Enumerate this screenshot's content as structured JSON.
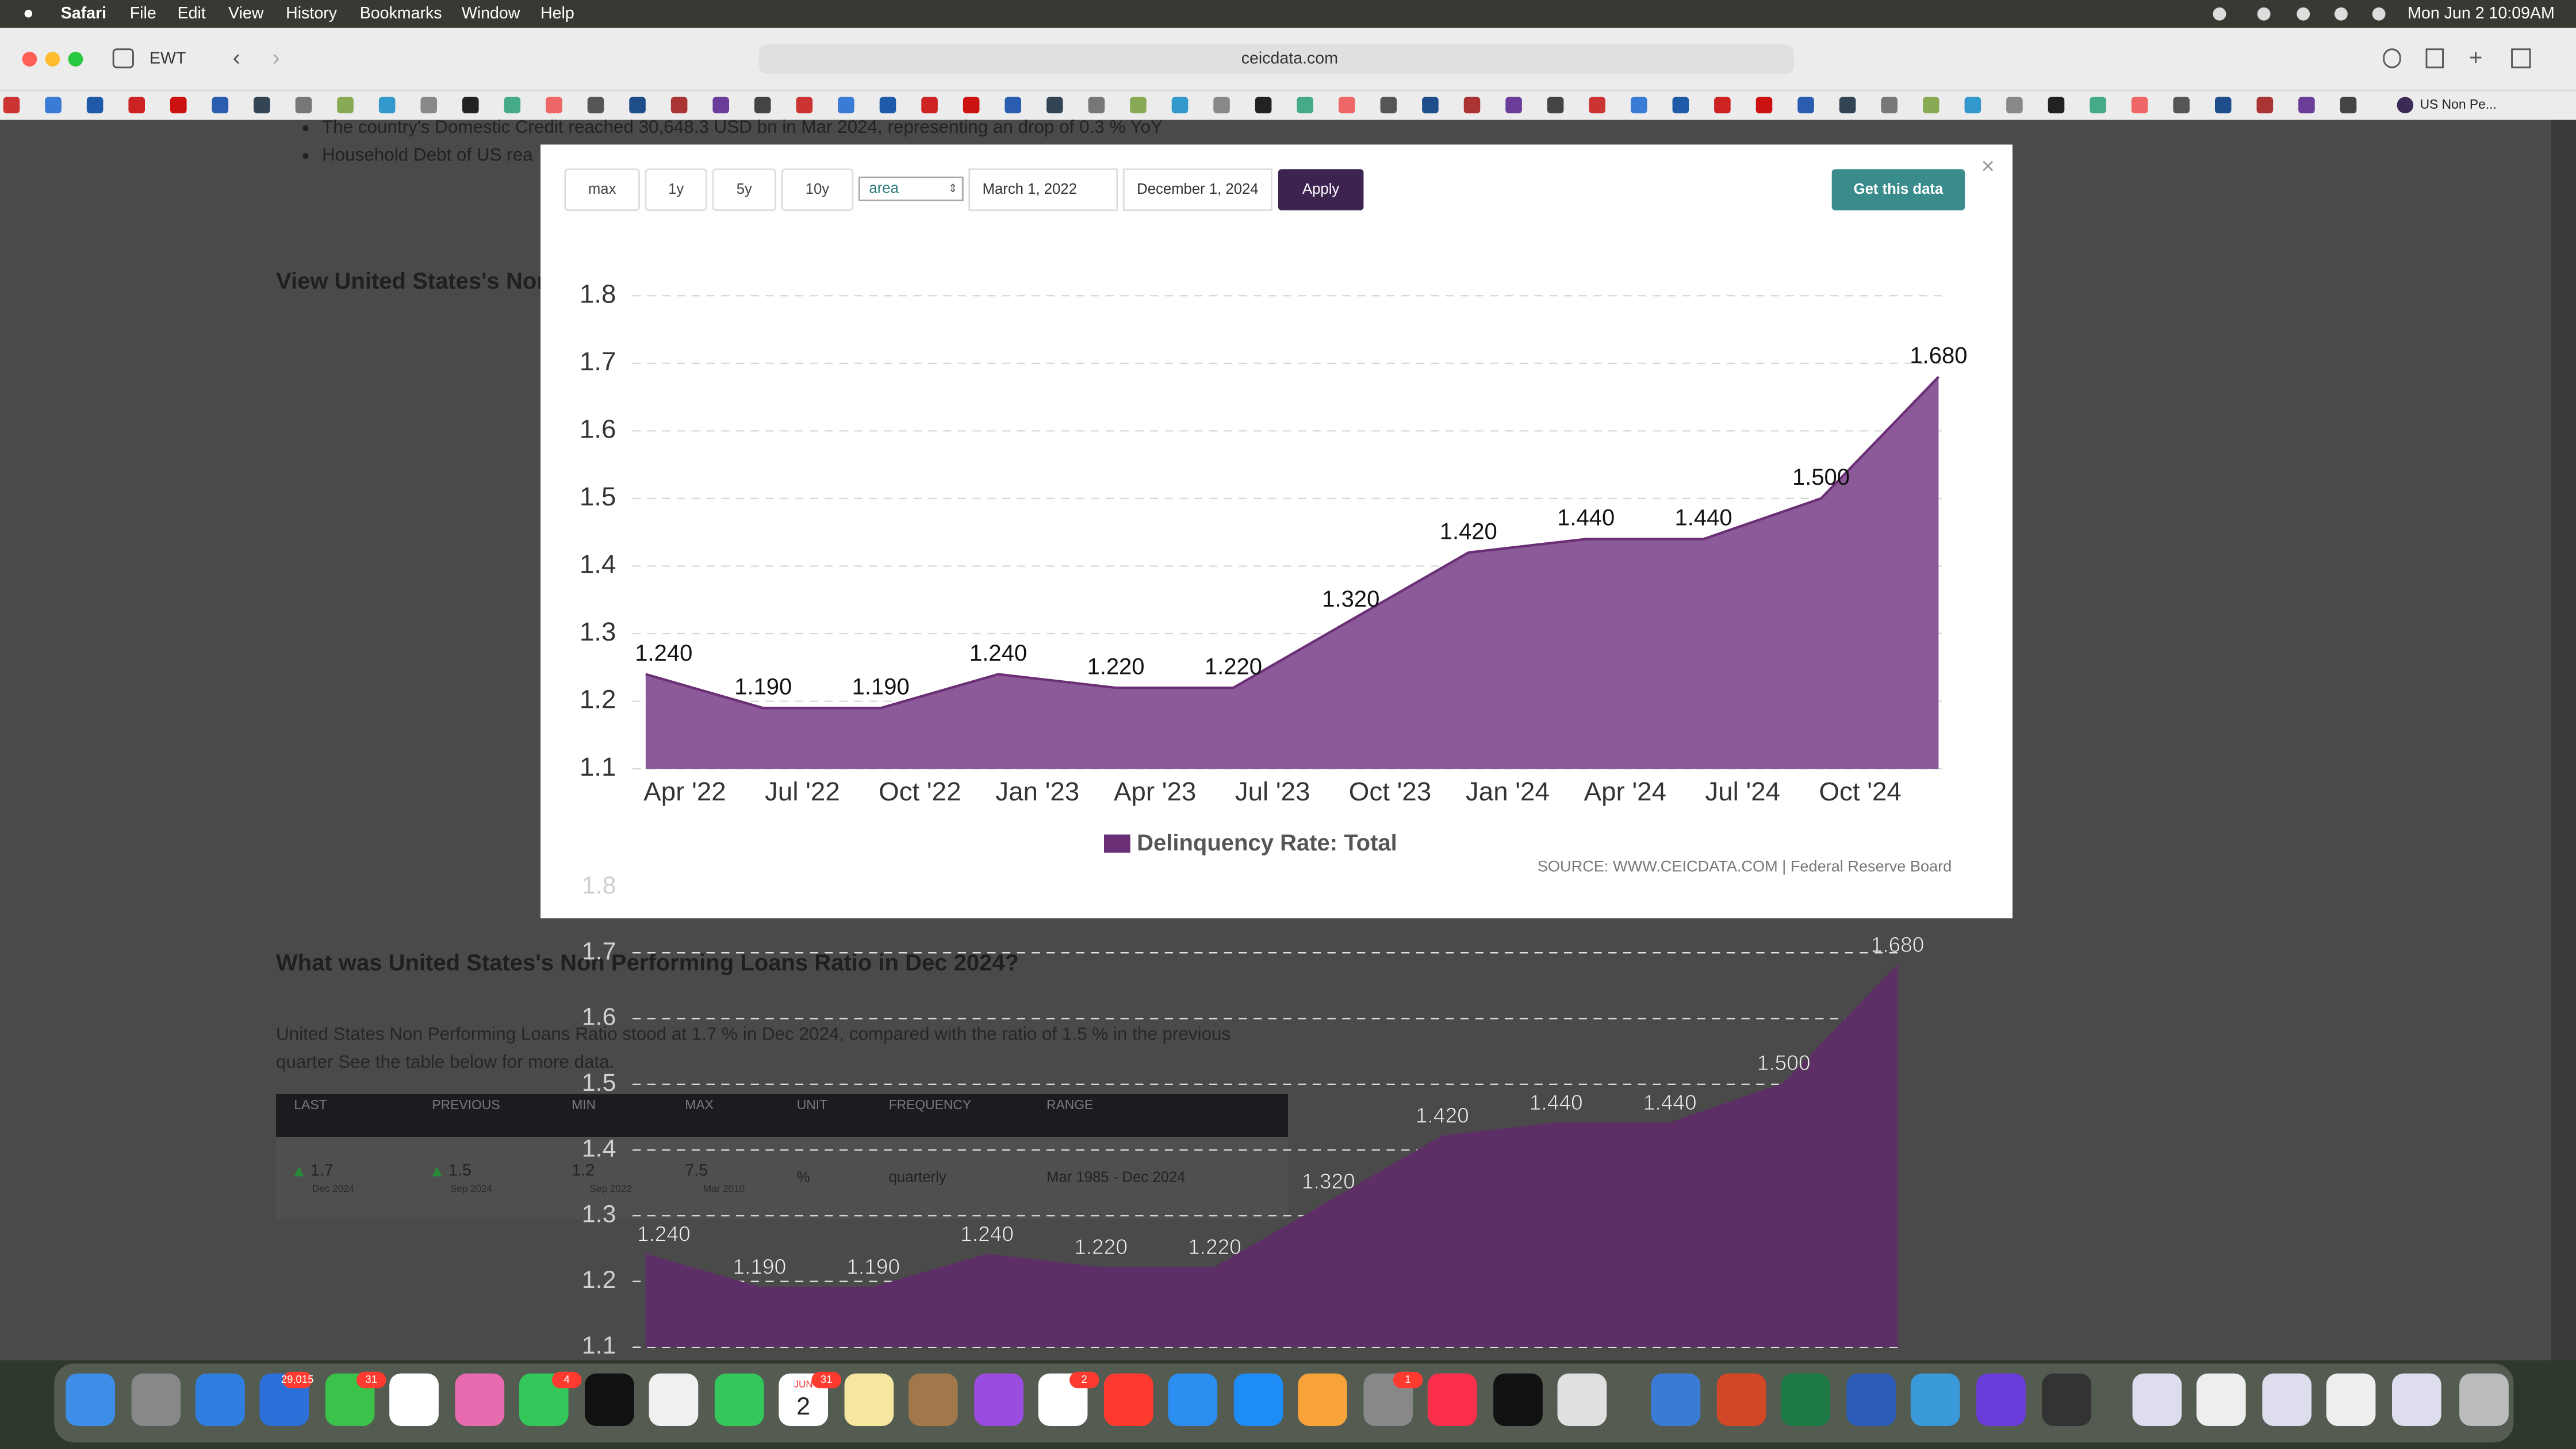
{
  "menu_bar": {
    "app": "Safari",
    "items": [
      "File",
      "Edit",
      "View",
      "History",
      "Bookmarks",
      "Window",
      "Help"
    ],
    "clock": "Mon Jun 2  10:09AM"
  },
  "toolbar": {
    "profile": "EWT",
    "url": "ceicdata.com",
    "bookmark_tab": "US Non Pe..."
  },
  "page": {
    "bullets": [
      "The country's Domestic Credit reached 30,648.3 USD bn in Mar 2024, representing an drop of 0.3 % YoY",
      "Household Debt of US rea"
    ],
    "view_heading": "View United States's Non",
    "question": "What was United States's Non Performing Loans Ratio in Dec 2024?",
    "paragraph": [
      "United States Non Performing Loans Ratio stood at 1.7 % in Dec 2024, compared with the ratio of 1.5 % in the previous",
      "quarter See the table below for more data."
    ],
    "table": {
      "header": [
        "LAST",
        "PREVIOUS",
        "MIN",
        "MAX",
        "UNIT",
        "FREQUENCY",
        "RANGE"
      ],
      "row": [
        {
          "value": "1.7",
          "date": "Dec 2024"
        },
        {
          "value": "1.5",
          "date": "Sep 2024"
        },
        {
          "value": "1.2",
          "date": "Sep 2022"
        },
        {
          "value": "7.5",
          "date": "Mar 2010"
        },
        {
          "value": "%"
        },
        {
          "value": "quarterly"
        },
        {
          "value": "Mar 1985 - Dec 2024"
        }
      ]
    }
  },
  "modal": {
    "ranges": [
      "max",
      "1y",
      "5y",
      "10y"
    ],
    "chart_type": "area",
    "start": "March 1, 2022",
    "end": "December 1, 2024",
    "apply": "Apply",
    "get_data": "Get this data"
  },
  "dock": {
    "badges": [
      "29,015",
      "31",
      "4",
      "31",
      "2",
      "1"
    ],
    "calendar": {
      "month": "JUN",
      "day": "2"
    }
  },
  "chart_data": {
    "type": "area",
    "x": [
      "2022-03",
      "2022-06",
      "2022-09",
      "2022-12",
      "2023-03",
      "2023-06",
      "2023-09",
      "2023-12",
      "2024-03",
      "2024-06",
      "2024-09",
      "2024-12"
    ],
    "values": [
      1.24,
      1.19,
      1.19,
      1.24,
      1.22,
      1.22,
      1.32,
      1.42,
      1.44,
      1.44,
      1.5,
      1.68
    ],
    "value_labels": [
      "1.240",
      "1.190",
      "1.190",
      "1.240",
      "1.220",
      "1.220",
      "1.320",
      "1.420",
      "1.440",
      "1.440",
      "1.500",
      "1.680"
    ],
    "series_name": "Delinquency Rate: Total",
    "color": "#8c5a99",
    "line_color": "#6a2f75",
    "xlim": [
      "2022-03",
      "2024-12"
    ],
    "xticks": [
      {
        "value": "2022-04",
        "label": "Apr '22"
      },
      {
        "value": "2022-07",
        "label": "Jul '22"
      },
      {
        "value": "2022-10",
        "label": "Oct '22"
      },
      {
        "value": "2023-01",
        "label": "Jan '23"
      },
      {
        "value": "2023-04",
        "label": "Apr '23"
      },
      {
        "value": "2023-07",
        "label": "Jul '23"
      },
      {
        "value": "2023-10",
        "label": "Oct '23"
      },
      {
        "value": "2024-01",
        "label": "Jan '24"
      },
      {
        "value": "2024-04",
        "label": "Apr '24"
      },
      {
        "value": "2024-07",
        "label": "Jul '24"
      },
      {
        "value": "2024-10",
        "label": "Oct '24"
      }
    ],
    "ylim": [
      1.1,
      1.8
    ],
    "yticks": [
      1.1,
      1.2,
      1.3,
      1.4,
      1.5,
      1.6,
      1.7,
      1.8
    ],
    "grid": true,
    "source": "SOURCE: WWW.CEICDATA.COM | Federal Reserve Board"
  }
}
